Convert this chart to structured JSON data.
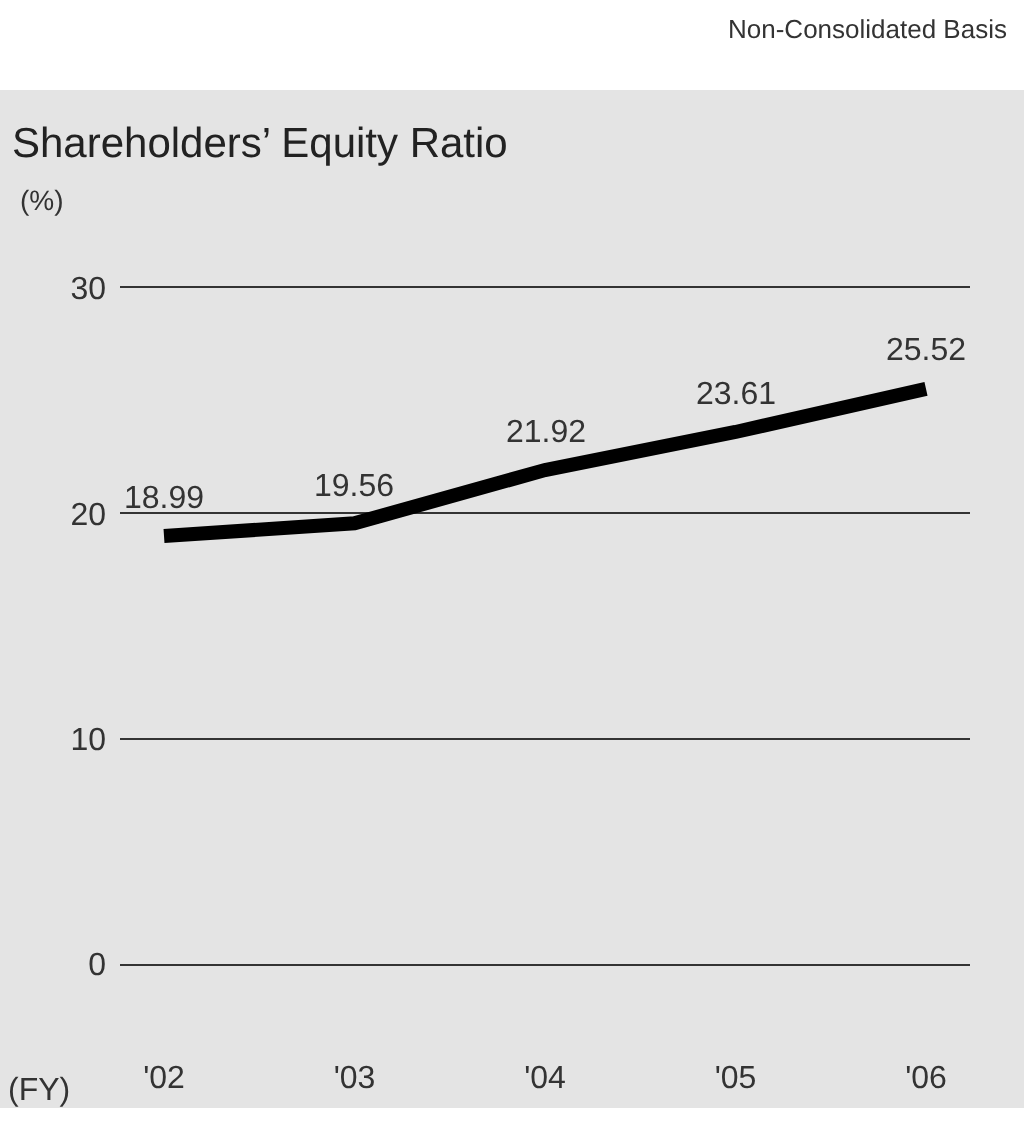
{
  "chart_data": {
    "type": "line",
    "title": "Shareholders’ Equity Ratio",
    "ylabel": "(%)",
    "xlabel": "(FY)",
    "annotations": [
      "Non-Consolidated Basis"
    ],
    "categories": [
      "'02",
      "'03",
      "'04",
      "'05",
      "'06"
    ],
    "series": [
      {
        "color": "#000000",
        "values": [
          18.99,
          19.56,
          21.92,
          23.61,
          25.52
        ]
      }
    ],
    "ylim": [
      0,
      30
    ],
    "yticks": [
      0,
      10,
      20,
      30
    ],
    "grid": "y",
    "data_labels": true,
    "marker": "none",
    "line_style": "solid"
  }
}
